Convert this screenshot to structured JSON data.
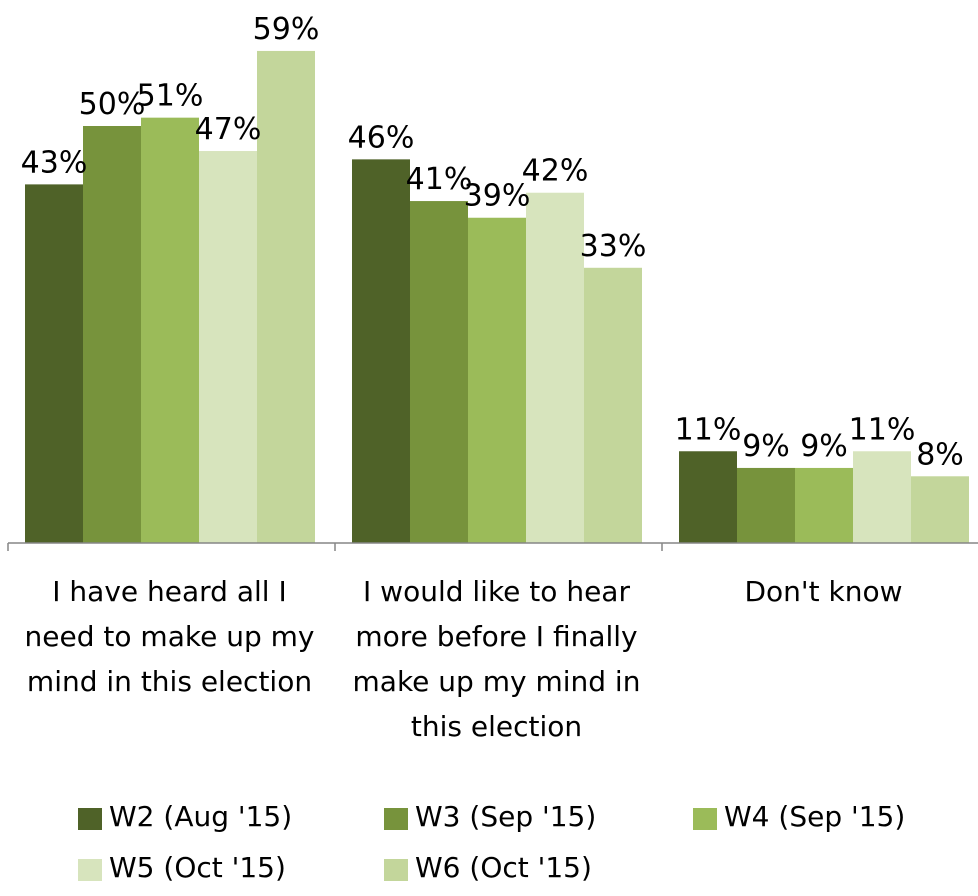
{
  "chart_data": {
    "type": "bar",
    "title": "",
    "xlabel": "",
    "ylabel": "",
    "ylim": [
      0,
      65
    ],
    "grid": false,
    "legend_position": "bottom",
    "value_suffix": "%",
    "categories": [
      [
        "I have heard all I",
        "need to make up my",
        "mind in this election"
      ],
      [
        "I would like to hear",
        "more before I finally",
        "make up my mind in",
        "this election"
      ],
      [
        "Don't know"
      ]
    ],
    "series": [
      {
        "name": "W2 (Aug '15)",
        "color": "#4f6228",
        "values": [
          43,
          46,
          11
        ]
      },
      {
        "name": "W3 (Sep '15)",
        "color": "#77933c",
        "values": [
          50,
          41,
          9
        ]
      },
      {
        "name": "W4 (Sep '15)",
        "color": "#9bbb59",
        "values": [
          51,
          39,
          9
        ]
      },
      {
        "name": "W5 (Oct '15)",
        "color": "#d7e4bd",
        "values": [
          47,
          42,
          11
        ]
      },
      {
        "name": "W6 (Oct '15)",
        "color": "#c3d69b",
        "values": [
          59,
          33,
          8
        ]
      }
    ]
  }
}
